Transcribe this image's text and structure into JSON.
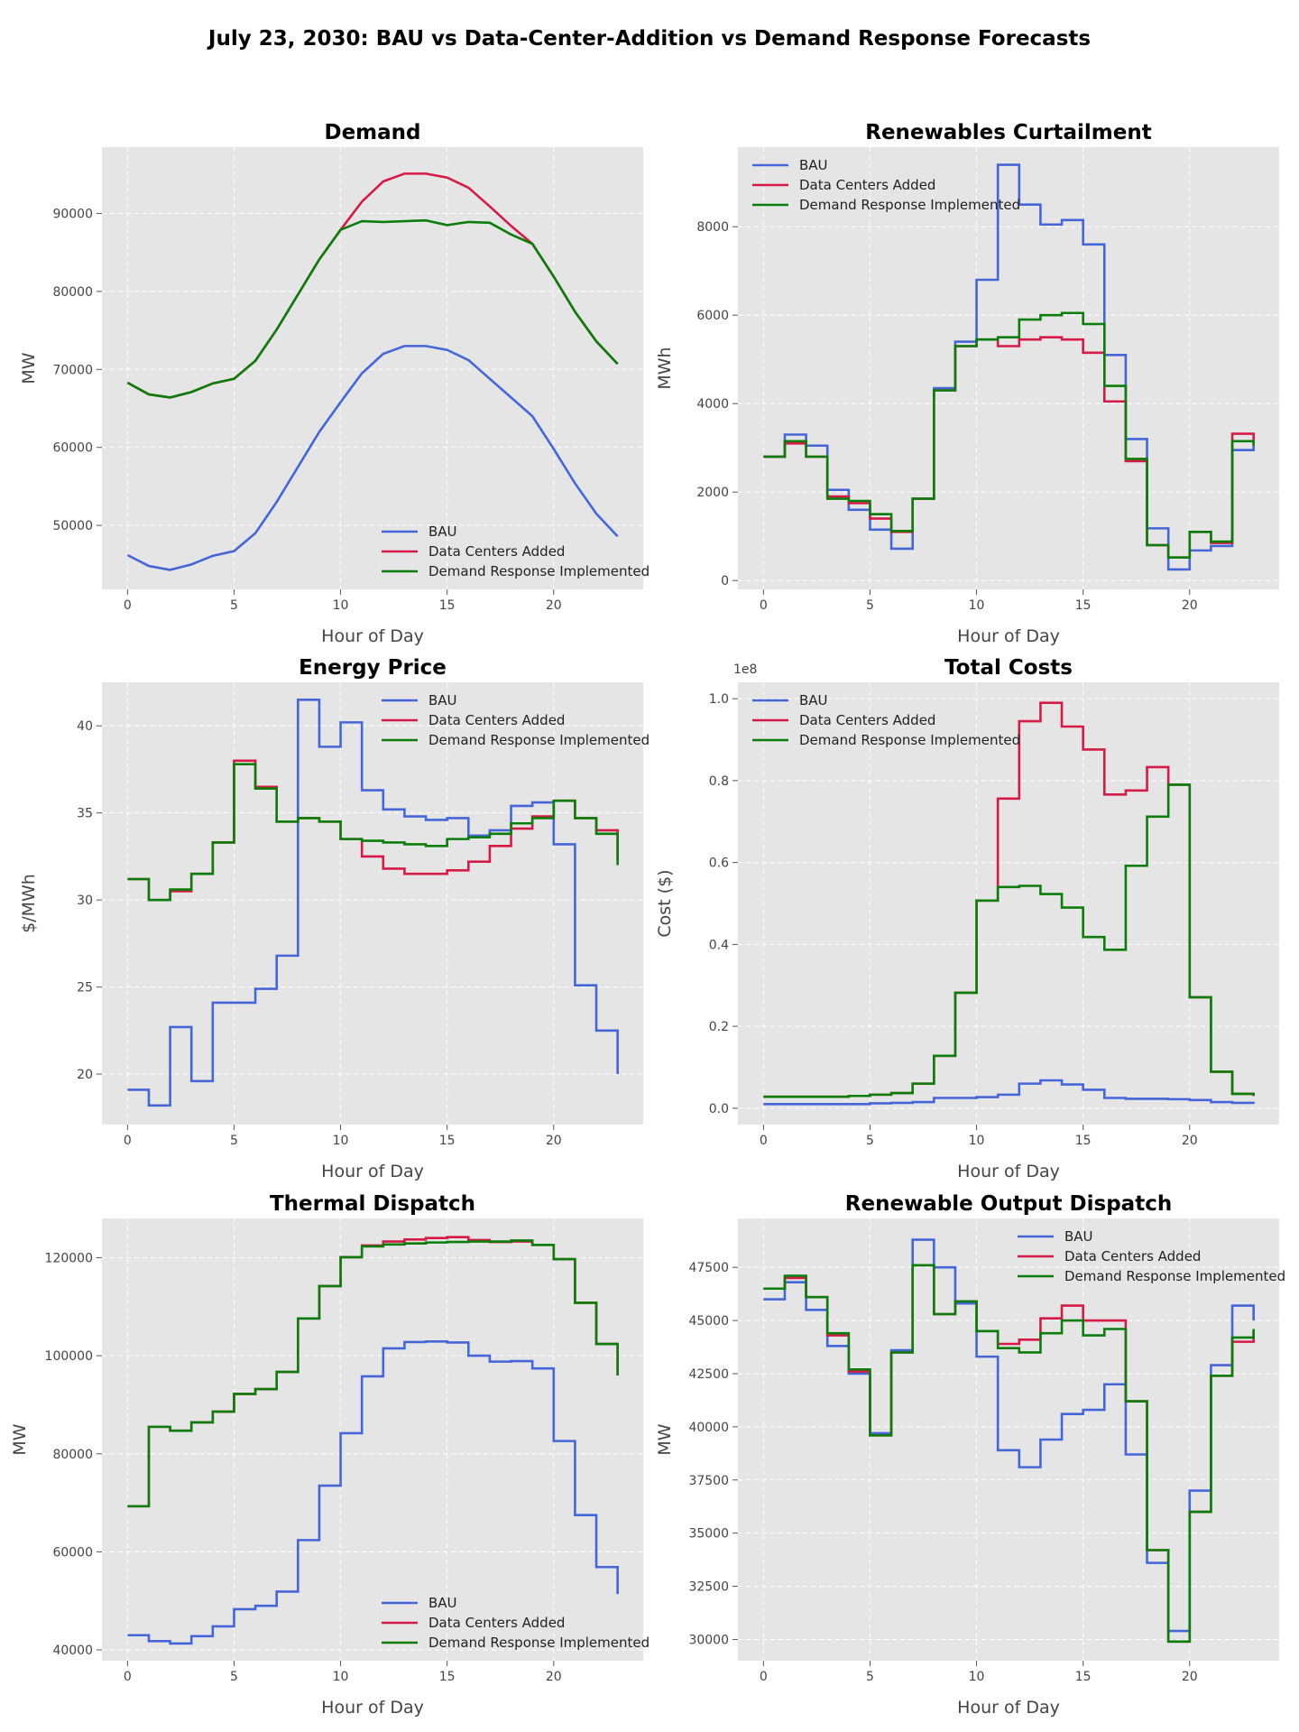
{
  "figure": {
    "title": "July 23, 2030: BAU vs Data-Center-Addition vs Demand Response Forecasts",
    "colors": {
      "BAU": "#4466d8",
      "Data Centers Added": "#d61a46",
      "Demand Response Implemented": "#0a7d0a",
      "panel_bg": "#e5e5e5",
      "grid": "#ffffff"
    }
  },
  "chart_data": [
    {
      "type": "line",
      "title": "Demand",
      "xlabel": "Hour of Day",
      "ylabel": "MW",
      "xlim": [
        -1.2,
        24.2
      ],
      "ylim": [
        41800,
        98500
      ],
      "xticks": [
        0,
        5,
        10,
        15,
        20
      ],
      "yticks": [
        50000,
        60000,
        70000,
        80000,
        90000
      ],
      "ytick_labels": [
        "50000",
        "60000",
        "70000",
        "80000",
        "90000"
      ],
      "legend_loc": "lower-right",
      "x": [
        0,
        1,
        2,
        3,
        4,
        5,
        6,
        7,
        8,
        9,
        10,
        11,
        12,
        13,
        14,
        15,
        16,
        17,
        18,
        19,
        20,
        21,
        22,
        23
      ],
      "series": [
        {
          "name": "BAU",
          "values": [
            46200,
            44800,
            44300,
            45000,
            46100,
            46700,
            49000,
            53000,
            57500,
            62000,
            65800,
            69500,
            72000,
            73000,
            73000,
            72500,
            71200,
            68800,
            66400,
            64000,
            59800,
            55400,
            51500,
            48600
          ]
        },
        {
          "name": "Data Centers Added",
          "values": [
            68300,
            66800,
            66400,
            67100,
            68200,
            68800,
            71100,
            75100,
            79600,
            84100,
            87900,
            91500,
            94100,
            95100,
            95100,
            94600,
            93300,
            90900,
            88400,
            86100,
            81900,
            77400,
            73600,
            70700
          ]
        },
        {
          "name": "Demand Response Implemented",
          "values": [
            68300,
            66800,
            66400,
            67100,
            68200,
            68800,
            71100,
            75100,
            79600,
            84100,
            87900,
            89000,
            88900,
            89000,
            89100,
            88500,
            88900,
            88800,
            87300,
            86100,
            81900,
            77400,
            73600,
            70700
          ]
        }
      ]
    },
    {
      "type": "step",
      "title": "Renewables Curtailment",
      "xlabel": "Hour of Day",
      "ylabel": "MWh",
      "xlim": [
        -1.2,
        24.2
      ],
      "ylim": [
        -200,
        9800
      ],
      "xticks": [
        0,
        5,
        10,
        15,
        20
      ],
      "yticks": [
        0,
        2000,
        4000,
        6000,
        8000
      ],
      "ytick_labels": [
        "0",
        "2000",
        "4000",
        "6000",
        "8000"
      ],
      "legend_loc": "upper-left",
      "x": [
        0,
        1,
        2,
        3,
        4,
        5,
        6,
        7,
        8,
        9,
        10,
        11,
        12,
        13,
        14,
        15,
        16,
        17,
        18,
        19,
        20,
        21,
        22,
        23
      ],
      "series": [
        {
          "name": "BAU",
          "values": [
            2800,
            3300,
            3050,
            2050,
            1600,
            1150,
            720,
            1850,
            4350,
            5400,
            6800,
            9400,
            8500,
            8050,
            8150,
            7600,
            5100,
            3200,
            1180,
            250,
            680,
            780,
            2950,
            3050
          ]
        },
        {
          "name": "Data Centers Added",
          "values": [
            2800,
            3100,
            2800,
            1900,
            1750,
            1400,
            1100,
            1850,
            4300,
            5300,
            5450,
            5300,
            5450,
            5500,
            5450,
            5150,
            4050,
            2700,
            800,
            520,
            1100,
            850,
            3320,
            3050
          ]
        },
        {
          "name": "Demand Response Implemented",
          "values": [
            2800,
            3150,
            2800,
            1850,
            1800,
            1500,
            1120,
            1850,
            4300,
            5300,
            5450,
            5500,
            5900,
            6000,
            6050,
            5800,
            4400,
            2750,
            800,
            520,
            1100,
            880,
            3150,
            3050
          ]
        }
      ]
    },
    {
      "type": "step",
      "title": "Energy Price",
      "xlabel": "Hour of Day",
      "ylabel": "$/MWh",
      "xlim": [
        -1.2,
        24.2
      ],
      "ylim": [
        17.1,
        42.5
      ],
      "xticks": [
        0,
        5,
        10,
        15,
        20
      ],
      "yticks": [
        20,
        25,
        30,
        35,
        40
      ],
      "ytick_labels": [
        "20",
        "25",
        "30",
        "35",
        "40"
      ],
      "legend_loc": "upper-right",
      "x": [
        0,
        1,
        2,
        3,
        4,
        5,
        6,
        7,
        8,
        9,
        10,
        11,
        12,
        13,
        14,
        15,
        16,
        17,
        18,
        19,
        20,
        21,
        22,
        23
      ],
      "series": [
        {
          "name": "BAU",
          "values": [
            19.1,
            18.2,
            22.7,
            19.6,
            24.1,
            24.1,
            24.9,
            26.8,
            41.5,
            38.8,
            40.2,
            36.3,
            35.2,
            34.8,
            34.6,
            34.7,
            33.7,
            34.0,
            35.4,
            35.6,
            33.2,
            25.1,
            22.5,
            20.0
          ]
        },
        {
          "name": "Data Centers Added",
          "values": [
            31.2,
            30.0,
            30.5,
            31.5,
            33.3,
            38.0,
            36.5,
            34.5,
            34.7,
            34.5,
            33.5,
            32.5,
            31.8,
            31.5,
            31.5,
            31.7,
            32.2,
            33.1,
            34.1,
            34.8,
            35.7,
            34.7,
            34.0,
            32.3
          ]
        },
        {
          "name": "Demand Response Implemented",
          "values": [
            31.2,
            30.0,
            30.6,
            31.5,
            33.3,
            37.8,
            36.4,
            34.5,
            34.7,
            34.5,
            33.5,
            33.4,
            33.3,
            33.2,
            33.1,
            33.5,
            33.6,
            33.8,
            34.4,
            34.7,
            35.7,
            34.7,
            33.8,
            32.0
          ]
        }
      ]
    },
    {
      "type": "step",
      "title": "Total Costs",
      "xlabel": "Hour of Day",
      "ylabel": "Cost ($)",
      "offset_label": "1e8",
      "xlim": [
        -1.2,
        24.2
      ],
      "ylim": [
        -0.04,
        1.04
      ],
      "xticks": [
        0,
        5,
        10,
        15,
        20
      ],
      "yticks": [
        0,
        0.2,
        0.4,
        0.6,
        0.8,
        1.0
      ],
      "ytick_labels": [
        "0.0",
        "0.2",
        "0.4",
        "0.6",
        "0.8",
        "1.0"
      ],
      "legend_loc": "upper-left",
      "x": [
        0,
        1,
        2,
        3,
        4,
        5,
        6,
        7,
        8,
        9,
        10,
        11,
        12,
        13,
        14,
        15,
        16,
        17,
        18,
        19,
        20,
        21,
        22,
        23
      ],
      "series": [
        {
          "name": "BAU",
          "values": [
            0.01,
            0.01,
            0.01,
            0.01,
            0.01,
            0.012,
            0.013,
            0.015,
            0.025,
            0.025,
            0.027,
            0.033,
            0.06,
            0.068,
            0.058,
            0.045,
            0.025,
            0.023,
            0.023,
            0.022,
            0.02,
            0.015,
            0.013,
            0.011
          ]
        },
        {
          "name": "Data Centers Added",
          "values": [
            0.028,
            0.028,
            0.028,
            0.028,
            0.03,
            0.033,
            0.037,
            0.06,
            0.128,
            0.282,
            0.507,
            0.756,
            0.945,
            0.99,
            0.932,
            0.876,
            0.766,
            0.776,
            0.833,
            0.79,
            0.271,
            0.089,
            0.035,
            0.03
          ]
        },
        {
          "name": "Demand Response Implemented",
          "values": [
            0.028,
            0.028,
            0.028,
            0.028,
            0.03,
            0.033,
            0.037,
            0.06,
            0.128,
            0.282,
            0.507,
            0.54,
            0.543,
            0.523,
            0.49,
            0.418,
            0.387,
            0.592,
            0.712,
            0.79,
            0.271,
            0.089,
            0.035,
            0.03
          ]
        }
      ]
    },
    {
      "type": "step",
      "title": "Thermal Dispatch",
      "xlabel": "Hour of Day",
      "ylabel": "MW",
      "xlim": [
        -1.2,
        24.2
      ],
      "ylim": [
        37800,
        128000
      ],
      "xticks": [
        0,
        5,
        10,
        15,
        20
      ],
      "yticks": [
        40000,
        60000,
        80000,
        100000,
        120000
      ],
      "ytick_labels": [
        "40000",
        "60000",
        "80000",
        "100000",
        "120000"
      ],
      "legend_loc": "lower-right",
      "x": [
        0,
        1,
        2,
        3,
        4,
        5,
        6,
        7,
        8,
        9,
        10,
        11,
        12,
        13,
        14,
        15,
        16,
        17,
        18,
        19,
        20,
        21,
        22,
        23
      ],
      "series": [
        {
          "name": "BAU",
          "values": [
            43000,
            41800,
            41300,
            42800,
            44800,
            48300,
            49000,
            51900,
            62400,
            73500,
            84200,
            95800,
            101500,
            102800,
            102900,
            102700,
            100000,
            98800,
            98900,
            97400,
            82600,
            67500,
            56900,
            51400
          ]
        },
        {
          "name": "Data Centers Added",
          "values": [
            69300,
            85500,
            84700,
            86400,
            88600,
            92200,
            93200,
            96700,
            107600,
            114200,
            120100,
            122500,
            123300,
            123700,
            124000,
            124200,
            123600,
            123200,
            123300,
            122600,
            119700,
            110800,
            102400,
            96000
          ]
        },
        {
          "name": "Demand Response Implemented",
          "values": [
            69300,
            85500,
            84700,
            86400,
            88600,
            92200,
            93200,
            96700,
            107600,
            114200,
            120100,
            122300,
            122700,
            122900,
            123100,
            123200,
            123300,
            123300,
            123500,
            122600,
            119700,
            110800,
            102400,
            96000
          ]
        }
      ]
    },
    {
      "type": "step",
      "title": "Renewable Output Dispatch",
      "xlabel": "Hour of Day",
      "ylabel": "MW",
      "xlim": [
        -1.2,
        24.2
      ],
      "ylim": [
        29000,
        49800
      ],
      "xticks": [
        0,
        5,
        10,
        15,
        20
      ],
      "yticks": [
        30000,
        32500,
        35000,
        37500,
        40000,
        42500,
        45000,
        47500
      ],
      "ytick_labels": [
        "30000",
        "32500",
        "35000",
        "37500",
        "40000",
        "42500",
        "45000",
        "47500"
      ],
      "legend_loc": "upper-right",
      "x": [
        0,
        1,
        2,
        3,
        4,
        5,
        6,
        7,
        8,
        9,
        10,
        11,
        12,
        13,
        14,
        15,
        16,
        17,
        18,
        19,
        20,
        21,
        22,
        23
      ],
      "series": [
        {
          "name": "BAU",
          "values": [
            46000,
            46800,
            45500,
            43800,
            42500,
            39700,
            43600,
            48800,
            47500,
            45800,
            43300,
            38900,
            38100,
            39400,
            40600,
            40800,
            42000,
            38700,
            33600,
            30400,
            37000,
            42900,
            45700,
            45000
          ]
        },
        {
          "name": "Data Centers Added",
          "values": [
            46500,
            47000,
            46100,
            44300,
            42600,
            39600,
            43500,
            47600,
            45300,
            45900,
            44500,
            43900,
            44100,
            45100,
            45700,
            45000,
            45000,
            41200,
            34200,
            29900,
            36000,
            42400,
            44000,
            44500
          ]
        },
        {
          "name": "Demand Response Implemented",
          "values": [
            46500,
            47100,
            46100,
            44400,
            42700,
            39600,
            43500,
            47600,
            45300,
            45900,
            44500,
            43700,
            43500,
            44400,
            45000,
            44300,
            44600,
            41200,
            34200,
            29900,
            36000,
            42400,
            44200,
            44600
          ]
        }
      ]
    }
  ]
}
